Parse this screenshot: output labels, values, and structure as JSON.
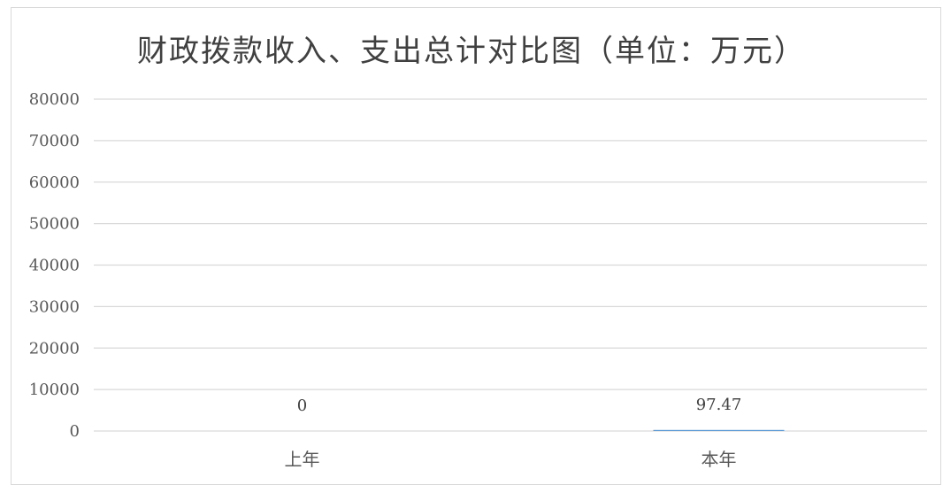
{
  "chart_data": {
    "type": "bar",
    "title": "财政拨款收入、支出总计对比图（单位：万元）",
    "categories": [
      "上年",
      "本年"
    ],
    "values": [
      0,
      97.47
    ],
    "data_labels": [
      "0",
      "97.47"
    ],
    "ylim": [
      0,
      80000
    ],
    "yticks": [
      0,
      10000,
      20000,
      30000,
      40000,
      50000,
      60000,
      70000,
      80000
    ],
    "ytick_labels": [
      "0",
      "10000",
      "20000",
      "30000",
      "40000",
      "50000",
      "60000",
      "70000",
      "80000"
    ],
    "grid": true,
    "legend": "none",
    "bar_color": "#5b9bd5",
    "grid_color": "#d9d9d9"
  }
}
